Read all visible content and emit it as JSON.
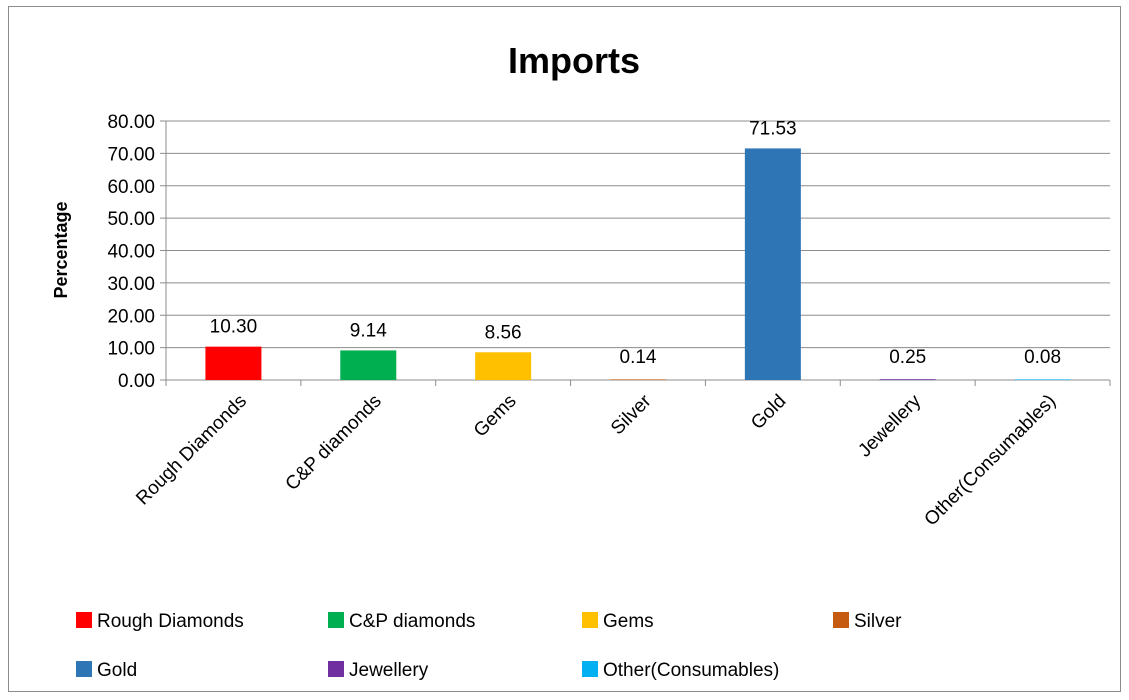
{
  "chart_data": {
    "type": "bar",
    "title": "Imports",
    "ylabel": "Percentage",
    "xlabel": "",
    "ylim": [
      0,
      80
    ],
    "yticks": [
      "0.00",
      "10.00",
      "20.00",
      "30.00",
      "40.00",
      "50.00",
      "60.00",
      "70.00",
      "80.00"
    ],
    "categories": [
      "Rough Diamonds",
      "C&P diamonds",
      "Gems",
      "Silver",
      "Gold",
      "Jewellery",
      "Other(Consumables)"
    ],
    "values": [
      10.3,
      9.14,
      8.56,
      0.14,
      71.53,
      0.25,
      0.08
    ],
    "data_labels": [
      "10.30",
      "9.14",
      "8.56",
      "0.14",
      "71.53",
      "0.25",
      "0.08"
    ],
    "colors": [
      "#ff0000",
      "#00b050",
      "#ffc000",
      "#c55a11",
      "#2e75b6",
      "#7030a0",
      "#00b0f0"
    ],
    "grid": true,
    "legend_position": "bottom"
  }
}
